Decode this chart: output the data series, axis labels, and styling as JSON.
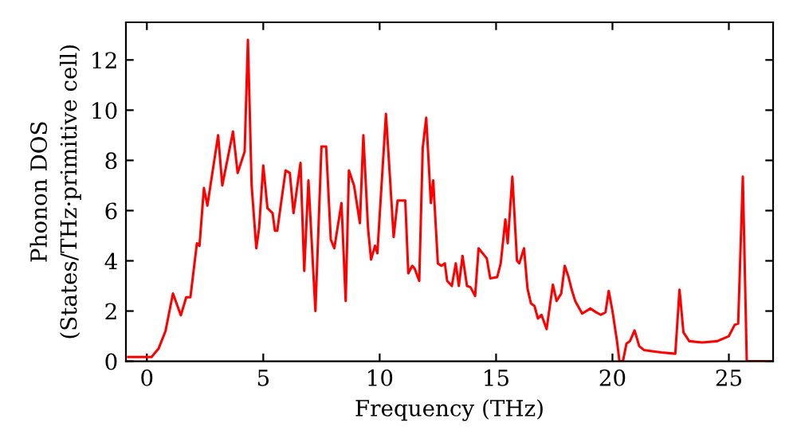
{
  "chart_data": {
    "type": "line",
    "xlabel": "Frequency (THz)",
    "ylabel": "Phonon DOS\n(States/THz·primitive cell)",
    "xlim": [
      -0.9,
      26.9
    ],
    "ylim": [
      0,
      13.5
    ],
    "xticks": [
      0,
      5,
      10,
      15,
      20,
      25
    ],
    "yticks": [
      0,
      2,
      4,
      6,
      8,
      10,
      12
    ],
    "grid": false,
    "marker": "none",
    "line_style": "solid",
    "series": [
      {
        "color": "#ff0000",
        "x": [
          -0.8,
          0.2,
          0.5,
          0.8,
          1.12,
          1.46,
          1.69,
          1.87,
          2.15,
          2.26,
          2.45,
          2.6,
          3.06,
          3.24,
          3.7,
          3.9,
          4.2,
          4.34,
          4.5,
          4.7,
          4.82,
          5.0,
          5.18,
          5.4,
          5.5,
          5.6,
          5.96,
          6.14,
          6.3,
          6.6,
          6.76,
          6.94,
          7.24,
          7.5,
          7.7,
          7.9,
          8.05,
          8.36,
          8.54,
          8.68,
          8.9,
          9.15,
          9.3,
          9.5,
          9.63,
          9.8,
          9.9,
          10.0,
          10.27,
          10.45,
          10.6,
          10.77,
          10.95,
          11.1,
          11.23,
          11.4,
          11.5,
          11.7,
          11.85,
          12.0,
          12.2,
          12.3,
          12.5,
          12.65,
          12.8,
          12.9,
          13.1,
          13.27,
          13.4,
          13.56,
          13.75,
          13.9,
          14.1,
          14.25,
          14.6,
          14.75,
          15.05,
          15.2,
          15.4,
          15.5,
          15.7,
          15.9,
          16.0,
          16.2,
          16.35,
          16.5,
          16.65,
          16.8,
          16.95,
          17.17,
          17.44,
          17.6,
          17.8,
          17.95,
          18.1,
          18.25,
          18.4,
          18.7,
          19.05,
          19.3,
          19.5,
          19.7,
          19.84,
          20.0,
          20.2,
          20.3,
          20.45,
          20.6,
          20.75,
          20.95,
          21.15,
          21.35,
          21.7,
          22.1,
          22.7,
          22.88,
          23.05,
          23.3,
          23.85,
          24.5,
          25.0,
          25.25,
          25.4,
          25.6,
          25.77,
          26.9
        ],
        "values": [
          0.17,
          0.17,
          0.5,
          1.2,
          2.7,
          1.83,
          2.55,
          2.55,
          4.7,
          4.6,
          6.9,
          6.2,
          9.0,
          7.0,
          9.15,
          7.5,
          8.35,
          12.8,
          7.0,
          4.5,
          5.3,
          7.8,
          6.1,
          5.9,
          5.2,
          5.2,
          7.6,
          7.5,
          5.9,
          7.9,
          3.6,
          7.2,
          2.0,
          8.55,
          8.55,
          4.85,
          4.5,
          6.3,
          2.4,
          7.6,
          7.0,
          5.5,
          9.0,
          5.3,
          4.05,
          4.6,
          4.3,
          5.8,
          9.85,
          7.2,
          4.95,
          6.4,
          6.4,
          6.4,
          3.5,
          3.8,
          3.7,
          3.2,
          8.5,
          9.7,
          6.3,
          7.2,
          3.9,
          3.8,
          3.9,
          3.2,
          3.0,
          3.9,
          3.0,
          4.2,
          3.0,
          2.95,
          2.6,
          4.5,
          4.1,
          3.3,
          3.35,
          3.9,
          5.65,
          4.7,
          7.35,
          4.0,
          3.9,
          4.5,
          2.9,
          2.3,
          2.2,
          1.7,
          1.85,
          1.28,
          3.05,
          2.4,
          2.7,
          3.8,
          3.4,
          2.85,
          2.4,
          1.9,
          2.1,
          1.95,
          1.85,
          1.95,
          2.8,
          2.0,
          0.77,
          0.0,
          0.0,
          0.7,
          0.8,
          1.23,
          0.6,
          0.45,
          0.4,
          0.35,
          0.3,
          2.85,
          1.15,
          0.8,
          0.75,
          0.8,
          1.0,
          1.45,
          1.5,
          7.35,
          0.0,
          0.0
        ]
      }
    ]
  }
}
